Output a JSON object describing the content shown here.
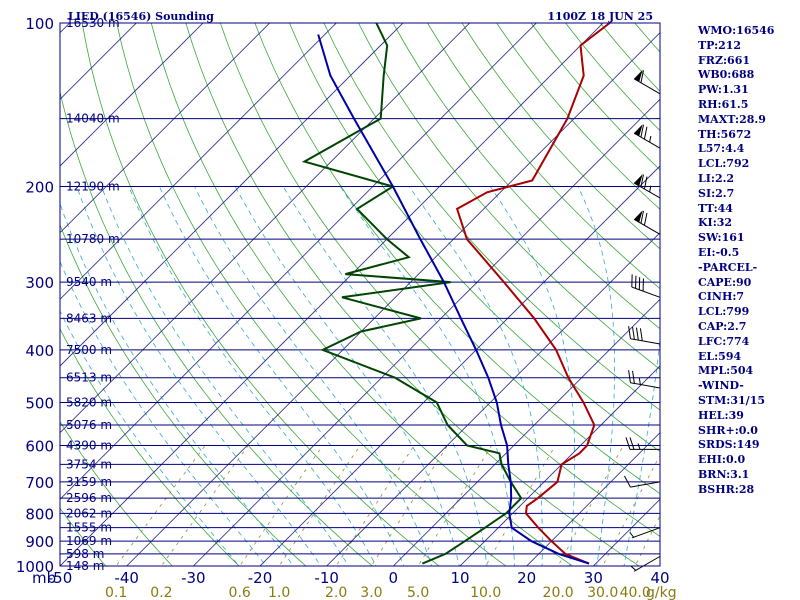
{
  "header": {
    "title": "LIED (16546) Sounding",
    "time": "1100Z 18 JUN 25"
  },
  "indices": [
    "WMO:16546",
    "TP:212",
    "FRZ:661",
    "WB0:688",
    "PW:1.31",
    "RH:61.5",
    "MAXT:28.9",
    "TH:5672",
    "L57:4.4",
    "LCL:792",
    "LI:2.2",
    "SI:2.7",
    "TT:44",
    "KI:32",
    "SW:161",
    "EI:-0.5",
    "-PARCEL-",
    "CAPE:90",
    "CINH:7",
    "LCL:799",
    "CAP:2.7",
    "LFC:774",
    "EL:594",
    "MPL:504",
    "-WIND-",
    "STM:31/15",
    "HEL:39",
    "SHR+:0.0",
    "SRDS:149",
    "EHI:0.0",
    "BRN:3.1",
    "BSHR:28"
  ],
  "chart_data": {
    "type": "line",
    "title": "LIED (16546) Sounding",
    "xlabel": "",
    "ylabel": "mb",
    "mixing_ratio_unit": "g/kg",
    "x_range": [
      -50,
      40
    ],
    "p_range": [
      1000,
      100
    ],
    "pressure_labels": [
      "100",
      "200",
      "300",
      "400",
      "500",
      "600",
      "700",
      "800",
      "900",
      "1000"
    ],
    "temperature_labels": [
      "-50",
      "-40",
      "-30",
      "-20",
      "-10",
      "0",
      "10",
      "20",
      "30",
      "40"
    ],
    "mixing_ratio_labels": [
      "0.1",
      "0.2",
      "0.6",
      "1.0",
      "2.0",
      "3.0",
      "5.0",
      "10.0",
      "20.0",
      "30.0",
      "40.0"
    ],
    "height_levels": [
      {
        "p": 100,
        "label": "16530 m"
      },
      {
        "p": 150,
        "label": "14040 m"
      },
      {
        "p": 200,
        "label": "12190 m"
      },
      {
        "p": 250,
        "label": "10780 m"
      },
      {
        "p": 300,
        "label": "9540 m"
      },
      {
        "p": 350,
        "label": "8463 m"
      },
      {
        "p": 400,
        "label": "7500 m"
      },
      {
        "p": 450,
        "label": "6513 m"
      },
      {
        "p": 500,
        "label": "5820 m"
      },
      {
        "p": 550,
        "label": "5076 m"
      },
      {
        "p": 600,
        "label": "4390 m"
      },
      {
        "p": 650,
        "label": "3754 m"
      },
      {
        "p": 700,
        "label": "3159 m"
      },
      {
        "p": 750,
        "label": "2596 m"
      },
      {
        "p": 800,
        "label": "2062 m"
      },
      {
        "p": 850,
        "label": "1555 m"
      },
      {
        "p": 900,
        "label": "1069 m"
      },
      {
        "p": 950,
        "label": "598 m"
      },
      {
        "p": 1000,
        "label": "148 m"
      }
    ],
    "series": [
      {
        "kind": "temperature",
        "color": "#aa0000",
        "points": [
          {
            "p": 990,
            "t": 29
          },
          {
            "p": 950,
            "t": 24
          },
          {
            "p": 900,
            "t": 20
          },
          {
            "p": 850,
            "t": 16
          },
          {
            "p": 800,
            "t": 12
          },
          {
            "p": 775,
            "t": 11
          },
          {
            "p": 750,
            "t": 11.5
          },
          {
            "p": 700,
            "t": 12
          },
          {
            "p": 650,
            "t": 10
          },
          {
            "p": 620,
            "t": 11
          },
          {
            "p": 600,
            "t": 11
          },
          {
            "p": 550,
            "t": 9
          },
          {
            "p": 500,
            "t": 4
          },
          {
            "p": 450,
            "t": -2
          },
          {
            "p": 400,
            "t": -8
          },
          {
            "p": 350,
            "t": -16
          },
          {
            "p": 300,
            "t": -26
          },
          {
            "p": 250,
            "t": -38
          },
          {
            "p": 220,
            "t": -44
          },
          {
            "p": 205,
            "t": -42
          },
          {
            "p": 195,
            "t": -37
          },
          {
            "p": 150,
            "t": -41
          },
          {
            "p": 125,
            "t": -45
          },
          {
            "p": 110,
            "t": -50
          },
          {
            "p": 100,
            "t": -49
          }
        ]
      },
      {
        "kind": "dewpoint",
        "color": "#004400",
        "points": [
          {
            "p": 990,
            "t": 4
          },
          {
            "p": 950,
            "t": 6
          },
          {
            "p": 900,
            "t": 7
          },
          {
            "p": 850,
            "t": 8
          },
          {
            "p": 800,
            "t": 9
          },
          {
            "p": 750,
            "t": 9
          },
          {
            "p": 700,
            "t": 5
          },
          {
            "p": 650,
            "t": 1
          },
          {
            "p": 620,
            "t": -1
          },
          {
            "p": 600,
            "t": -7
          },
          {
            "p": 550,
            "t": -13
          },
          {
            "p": 500,
            "t": -18
          },
          {
            "p": 450,
            "t": -28
          },
          {
            "p": 400,
            "t": -43
          },
          {
            "p": 370,
            "t": -40
          },
          {
            "p": 350,
            "t": -33
          },
          {
            "p": 320,
            "t": -48
          },
          {
            "p": 300,
            "t": -34
          },
          {
            "p": 290,
            "t": -51
          },
          {
            "p": 270,
            "t": -44
          },
          {
            "p": 250,
            "t": -50
          },
          {
            "p": 220,
            "t": -59
          },
          {
            "p": 200,
            "t": -57
          },
          {
            "p": 180,
            "t": -74
          },
          {
            "p": 150,
            "t": -69
          },
          {
            "p": 125,
            "t": -75
          },
          {
            "p": 110,
            "t": -79
          },
          {
            "p": 100,
            "t": -84
          }
        ]
      },
      {
        "kind": "parcel",
        "color": "#0000aa",
        "points": [
          {
            "p": 990,
            "t": 29
          },
          {
            "p": 950,
            "t": 23
          },
          {
            "p": 900,
            "t": 17
          },
          {
            "p": 850,
            "t": 12
          },
          {
            "p": 800,
            "t": 9.5
          },
          {
            "p": 750,
            "t": 7.5
          },
          {
            "p": 700,
            "t": 5
          },
          {
            "p": 650,
            "t": 2
          },
          {
            "p": 600,
            "t": -1
          },
          {
            "p": 550,
            "t": -5
          },
          {
            "p": 500,
            "t": -9
          },
          {
            "p": 450,
            "t": -14
          },
          {
            "p": 400,
            "t": -20
          },
          {
            "p": 350,
            "t": -27
          },
          {
            "p": 300,
            "t": -35
          },
          {
            "p": 250,
            "t": -45
          },
          {
            "p": 200,
            "t": -57
          },
          {
            "p": 150,
            "t": -73
          },
          {
            "p": 125,
            "t": -83
          },
          {
            "p": 105,
            "t": -91
          }
        ]
      }
    ],
    "wind_barbs": [
      {
        "p": 135,
        "dir": 300,
        "kt": 60
      },
      {
        "p": 170,
        "dir": 300,
        "kt": 75
      },
      {
        "p": 210,
        "dir": 300,
        "kt": 75
      },
      {
        "p": 245,
        "dir": 300,
        "kt": 70
      },
      {
        "p": 320,
        "dir": 290,
        "kt": 40
      },
      {
        "p": 390,
        "dir": 280,
        "kt": 40
      },
      {
        "p": 470,
        "dir": 280,
        "kt": 25
      },
      {
        "p": 610,
        "dir": 270,
        "kt": 25
      },
      {
        "p": 700,
        "dir": 260,
        "kt": 10
      },
      {
        "p": 850,
        "dir": 250,
        "kt": 5
      },
      {
        "p": 960,
        "dir": 240,
        "kt": 5
      }
    ],
    "grid": true
  }
}
